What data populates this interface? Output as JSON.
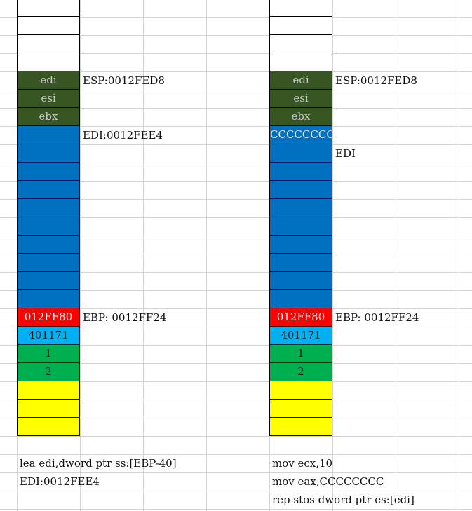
{
  "left_stack": {
    "cells": [
      {
        "text": "",
        "color": "#ffffff"
      },
      {
        "text": "",
        "color": "#ffffff"
      },
      {
        "text": "",
        "color": "#ffffff"
      },
      {
        "text": "",
        "color": "#ffffff"
      },
      {
        "text": "edi",
        "color": "#375623"
      },
      {
        "text": "esi",
        "color": "#375623"
      },
      {
        "text": "ebx",
        "color": "#375623"
      },
      {
        "text": "",
        "color": "#0070c0"
      },
      {
        "text": "",
        "color": "#0070c0"
      },
      {
        "text": "",
        "color": "#0070c0"
      },
      {
        "text": "",
        "color": "#0070c0"
      },
      {
        "text": "",
        "color": "#0070c0"
      },
      {
        "text": "",
        "color": "#0070c0"
      },
      {
        "text": "",
        "color": "#0070c0"
      },
      {
        "text": "",
        "color": "#0070c0"
      },
      {
        "text": "",
        "color": "#0070c0"
      },
      {
        "text": "",
        "color": "#0070c0"
      },
      {
        "text": "012FF80",
        "color": "#ff0000"
      },
      {
        "text": "401171",
        "color": "#00b0f0"
      },
      {
        "text": "1",
        "color": "#00b050"
      },
      {
        "text": "2",
        "color": "#00b050"
      },
      {
        "text": "",
        "color": "#ffff00"
      },
      {
        "text": "",
        "color": "#ffff00"
      },
      {
        "text": "",
        "color": "#ffff00"
      }
    ],
    "labels": {
      "esp": "ESP:0012FED8",
      "edi": "EDI:0012FEE4",
      "ebp": "EBP: 0012FF24"
    }
  },
  "right_stack": {
    "cells": [
      {
        "text": "",
        "color": "#ffffff"
      },
      {
        "text": "",
        "color": "#ffffff"
      },
      {
        "text": "",
        "color": "#ffffff"
      },
      {
        "text": "",
        "color": "#ffffff"
      },
      {
        "text": "edi",
        "color": "#375623"
      },
      {
        "text": "esi",
        "color": "#375623"
      },
      {
        "text": "ebx",
        "color": "#375623"
      },
      {
        "text": "CCCCCCCC",
        "color": "#0070c0"
      },
      {
        "text": "",
        "color": "#0070c0"
      },
      {
        "text": "",
        "color": "#0070c0"
      },
      {
        "text": "",
        "color": "#0070c0"
      },
      {
        "text": "",
        "color": "#0070c0"
      },
      {
        "text": "",
        "color": "#0070c0"
      },
      {
        "text": "",
        "color": "#0070c0"
      },
      {
        "text": "",
        "color": "#0070c0"
      },
      {
        "text": "",
        "color": "#0070c0"
      },
      {
        "text": "",
        "color": "#0070c0"
      },
      {
        "text": "012FF80",
        "color": "#ff0000"
      },
      {
        "text": "401171",
        "color": "#00b0f0"
      },
      {
        "text": "1",
        "color": "#00b050"
      },
      {
        "text": "2",
        "color": "#00b050"
      },
      {
        "text": "",
        "color": "#ffff00"
      },
      {
        "text": "",
        "color": "#ffff00"
      },
      {
        "text": "",
        "color": "#ffff00"
      }
    ],
    "labels": {
      "esp": "ESP:0012FED8",
      "edi": "EDI",
      "ebp": "EBP: 0012FF24"
    }
  },
  "code_left": [
    "lea edi,dword ptr ss:[EBP-40]",
    "EDI:0012FEE4"
  ],
  "code_right": [
    "mov ecx,10",
    "mov eax,CCCCCCCC",
    "rep stos dword ptr es:[edi]"
  ]
}
